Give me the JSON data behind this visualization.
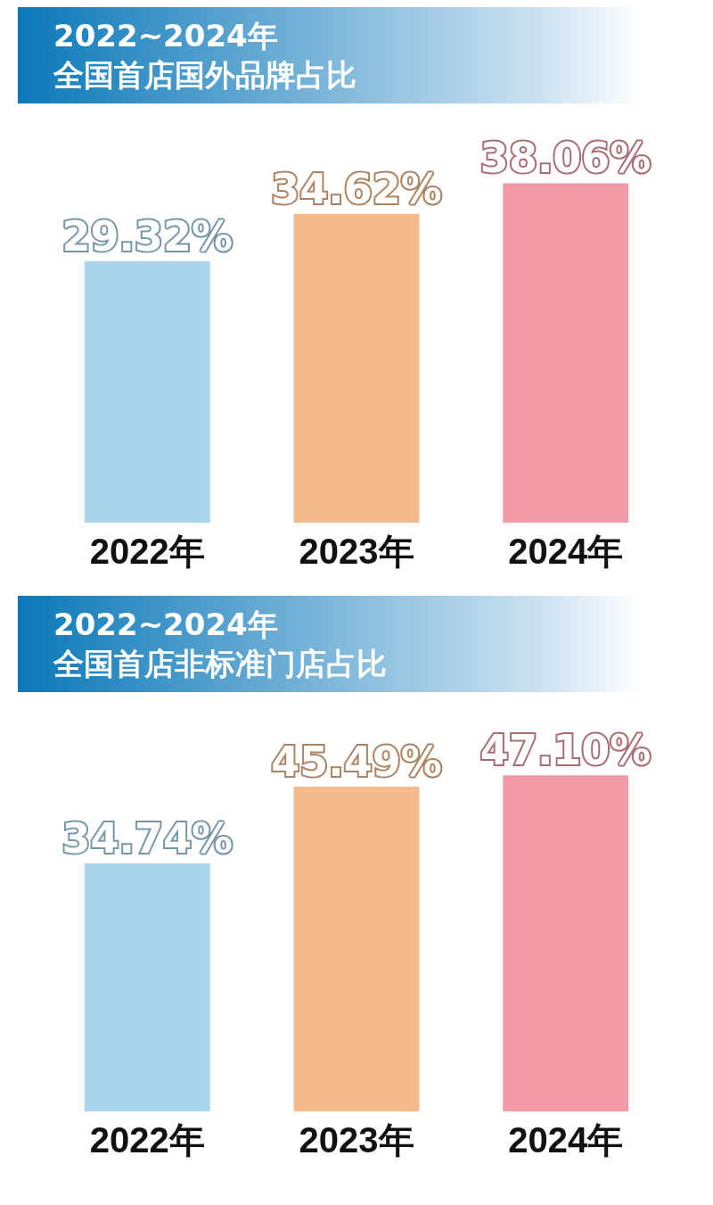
{
  "chart_data": [
    {
      "type": "bar",
      "title": "2022~2024年",
      "subtitle": "全国首店国外品牌占比",
      "categories": [
        "2022年",
        "2023年",
        "2024年"
      ],
      "values": [
        29.32,
        34.62,
        38.06
      ],
      "value_labels": [
        "29.32%",
        "34.62%",
        "38.06%"
      ],
      "colors": [
        "#a9d6ee",
        "#f6b98a",
        "#f29aa6"
      ]
    },
    {
      "type": "bar",
      "title": "2022~2024年",
      "subtitle": "全国首店非标准门店占比",
      "categories": [
        "2022年",
        "2023年",
        "2024年"
      ],
      "values": [
        34.74,
        45.49,
        47.1
      ],
      "value_labels": [
        "34.74%",
        "45.49%",
        "47.10%"
      ],
      "colors": [
        "#a9d6ee",
        "#f6b98a",
        "#f29aa6"
      ]
    }
  ]
}
